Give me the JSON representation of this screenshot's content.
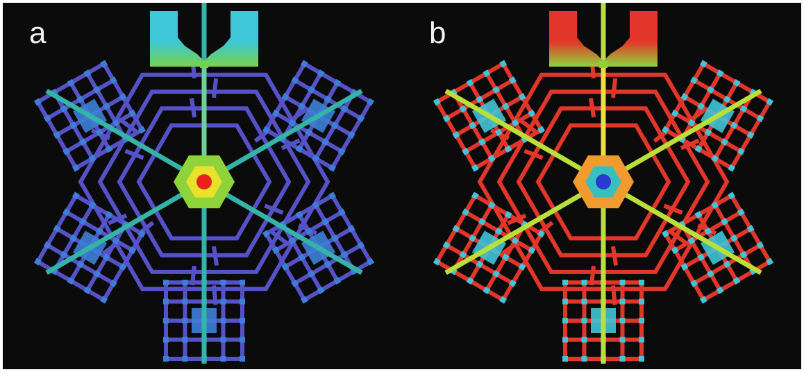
{
  "panels": [
    {
      "label": "a",
      "colors": {
        "grid": "#5552c8",
        "grid_edge": "#8b86e8",
        "junction": "#3d7fd6",
        "spoke": "#34b3a8",
        "spoke_edge": "#6fd19a",
        "hub_outer": "#8fd33a",
        "hub_mid": "#e8e22a",
        "hub_core": "#e8221a",
        "nozzle_top": "#3ec7d6",
        "nozzle_bottom": "#77d24a"
      }
    },
    {
      "label": "b",
      "colors": {
        "grid": "#e3362a",
        "grid_edge": "#f08a2a",
        "junction": "#40c4d6",
        "spoke": "#b9df3a",
        "spoke_edge": "#e9e23a",
        "hub_outer": "#f09a30",
        "hub_mid": "#36c0c0",
        "hub_core": "#2a3ad0",
        "nozzle_top": "#e3362a",
        "nozzle_bottom": "#8fd33a"
      }
    }
  ]
}
